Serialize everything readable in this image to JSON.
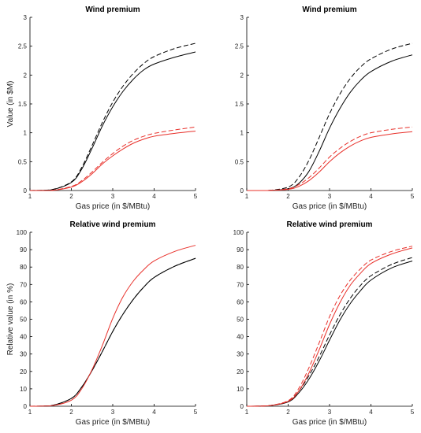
{
  "chart_data": [
    {
      "type": "line",
      "title": "Wind premium",
      "xlabel": "Gas price (in $/MBtu)",
      "ylabel": "Value (in $M)",
      "xlim": [
        1,
        5
      ],
      "ylim": [
        0,
        3
      ],
      "xticks": [
        1,
        2,
        3,
        4,
        5
      ],
      "yticks": [
        0,
        0.5,
        1,
        1.5,
        2,
        2.5,
        3
      ],
      "ytick_labels": [
        "0",
        "0.5",
        "1",
        "1.5",
        "2",
        "2.5",
        "3"
      ],
      "x": [
        1.0,
        1.5,
        2.0,
        2.25,
        2.5,
        2.75,
        3.0,
        3.25,
        3.5,
        3.75,
        4.0,
        4.5,
        5.0
      ],
      "series": [
        {
          "color": "#000000",
          "style": "solid",
          "values": [
            0.0,
            0.01,
            0.14,
            0.37,
            0.73,
            1.12,
            1.45,
            1.72,
            1.93,
            2.09,
            2.19,
            2.31,
            2.4
          ]
        },
        {
          "color": "#000000",
          "style": "dashed",
          "values": [
            0.0,
            0.01,
            0.15,
            0.4,
            0.78,
            1.18,
            1.53,
            1.81,
            2.03,
            2.2,
            2.32,
            2.46,
            2.55
          ]
        },
        {
          "color": "#e8302a",
          "style": "solid",
          "values": [
            0.0,
            0.0,
            0.06,
            0.15,
            0.29,
            0.46,
            0.6,
            0.72,
            0.82,
            0.89,
            0.94,
            0.99,
            1.03
          ]
        },
        {
          "color": "#e8302a",
          "style": "dashed",
          "values": [
            0.0,
            0.0,
            0.07,
            0.17,
            0.32,
            0.49,
            0.64,
            0.77,
            0.87,
            0.94,
            0.99,
            1.05,
            1.1
          ]
        }
      ]
    },
    {
      "type": "line",
      "title": "Wind premium",
      "xlabel": "Gas price (in $/MBtu)",
      "ylabel": "",
      "xlim": [
        1,
        5
      ],
      "ylim": [
        0,
        3
      ],
      "xticks": [
        1,
        2,
        3,
        4,
        5
      ],
      "yticks": [
        0,
        0.5,
        1,
        1.5,
        2,
        2.5,
        3
      ],
      "ytick_labels": [
        "0",
        "0.5",
        "1",
        "1.5",
        "2",
        "2.5",
        "3"
      ],
      "x": [
        1.0,
        1.5,
        2.0,
        2.25,
        2.5,
        2.75,
        3.0,
        3.25,
        3.5,
        3.75,
        4.0,
        4.5,
        5.0
      ],
      "series": [
        {
          "color": "#000000",
          "style": "solid",
          "values": [
            0.0,
            0.0,
            0.03,
            0.12,
            0.33,
            0.68,
            1.08,
            1.42,
            1.7,
            1.91,
            2.06,
            2.24,
            2.35
          ]
        },
        {
          "color": "#000000",
          "style": "dashed",
          "values": [
            0.0,
            0.0,
            0.06,
            0.22,
            0.52,
            0.92,
            1.33,
            1.67,
            1.94,
            2.14,
            2.28,
            2.45,
            2.55
          ]
        },
        {
          "color": "#e8302a",
          "style": "solid",
          "values": [
            0.0,
            0.0,
            0.02,
            0.07,
            0.17,
            0.32,
            0.5,
            0.65,
            0.77,
            0.86,
            0.92,
            0.98,
            1.02
          ]
        },
        {
          "color": "#e8302a",
          "style": "dashed",
          "values": [
            0.0,
            0.0,
            0.03,
            0.1,
            0.22,
            0.39,
            0.58,
            0.73,
            0.85,
            0.94,
            1.0,
            1.06,
            1.1
          ]
        }
      ]
    },
    {
      "type": "line",
      "title": "Relative wind premium",
      "xlabel": "Gas price (in $/MBtu)",
      "ylabel": "Relative value (in %)",
      "xlim": [
        1,
        5
      ],
      "ylim": [
        0,
        100
      ],
      "xticks": [
        1,
        2,
        3,
        4,
        5
      ],
      "yticks": [
        0,
        10,
        20,
        30,
        40,
        50,
        60,
        70,
        80,
        90,
        100
      ],
      "ytick_labels": [
        "0",
        "10",
        "20",
        "30",
        "40",
        "50",
        "60",
        "70",
        "80",
        "90",
        "100"
      ],
      "x": [
        1.0,
        1.5,
        2.0,
        2.25,
        2.5,
        2.75,
        3.0,
        3.25,
        3.5,
        3.75,
        4.0,
        4.5,
        5.0
      ],
      "series": [
        {
          "color": "#000000",
          "style": "solid",
          "values": [
            0.0,
            0.3,
            4.5,
            11.0,
            20.5,
            31.5,
            43.0,
            53.0,
            61.5,
            68.5,
            74.0,
            80.5,
            85.0
          ]
        },
        {
          "color": "#000000",
          "style": "dashed",
          "values": [
            0.0,
            0.3,
            4.5,
            11.0,
            20.5,
            31.5,
            43.0,
            53.0,
            61.5,
            68.5,
            74.0,
            80.5,
            85.0
          ]
        },
        {
          "color": "#e8302a",
          "style": "solid",
          "values": [
            0.0,
            0.2,
            3.5,
            10.0,
            21.0,
            35.0,
            50.5,
            63.0,
            72.0,
            78.5,
            83.5,
            89.0,
            92.5
          ]
        }
      ]
    },
    {
      "type": "line",
      "title": "Relative wind premium",
      "xlabel": "Gas price (in $/MBtu)",
      "ylabel": "",
      "xlim": [
        1,
        5
      ],
      "ylim": [
        0,
        100
      ],
      "xticks": [
        1,
        2,
        3,
        4,
        5
      ],
      "yticks": [
        0,
        10,
        20,
        30,
        40,
        50,
        60,
        70,
        80,
        90,
        100
      ],
      "ytick_labels": [
        "0",
        "10",
        "20",
        "30",
        "40",
        "50",
        "60",
        "70",
        "80",
        "90",
        "100"
      ],
      "x": [
        1.0,
        1.5,
        2.0,
        2.25,
        2.5,
        2.75,
        3.0,
        3.25,
        3.5,
        3.75,
        4.0,
        4.5,
        5.0
      ],
      "series": [
        {
          "color": "#000000",
          "style": "solid",
          "values": [
            0.0,
            0.2,
            2.5,
            7.5,
            15.5,
            26.0,
            38.0,
            49.5,
            59.0,
            66.5,
            72.5,
            79.5,
            83.5
          ]
        },
        {
          "color": "#000000",
          "style": "dashed",
          "values": [
            0.0,
            0.2,
            3.0,
            8.5,
            17.5,
            28.5,
            41.0,
            52.5,
            62.0,
            69.5,
            75.0,
            81.5,
            85.5
          ]
        },
        {
          "color": "#e8302a",
          "style": "solid",
          "values": [
            0.0,
            0.2,
            2.8,
            8.5,
            19.0,
            32.5,
            47.0,
            59.5,
            69.5,
            76.5,
            82.0,
            87.5,
            91.0
          ]
        },
        {
          "color": "#e8302a",
          "style": "dashed",
          "values": [
            0.0,
            0.2,
            3.2,
            10.0,
            22.0,
            36.5,
            51.5,
            63.5,
            72.5,
            79.0,
            84.0,
            89.0,
            92.0
          ]
        }
      ]
    }
  ]
}
